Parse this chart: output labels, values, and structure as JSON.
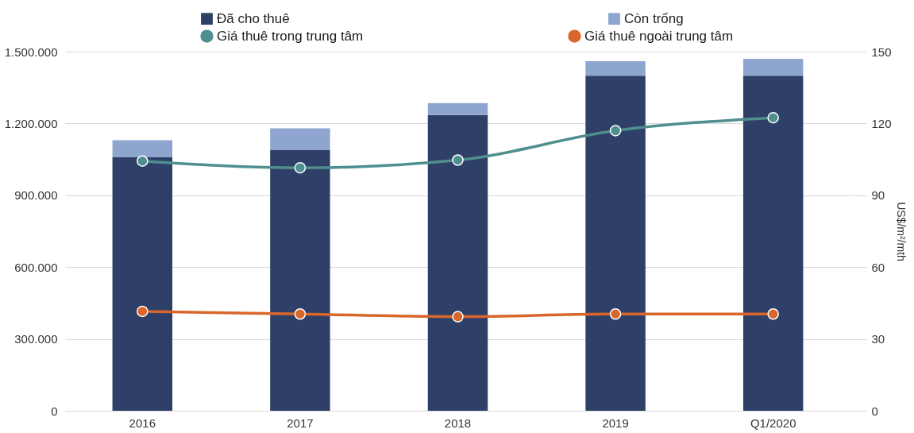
{
  "chart_data": {
    "type": "bar",
    "stacked": true,
    "categories": [
      "2016",
      "2017",
      "2018",
      "2019",
      "Q1/2020"
    ],
    "series": [
      {
        "name": "Đã cho thuê",
        "color": "#2e4068",
        "values": [
          1060000,
          1090000,
          1235000,
          1400000,
          1400000
        ]
      },
      {
        "name": "Còn trống",
        "color": "#8ea6cf",
        "values": [
          70000,
          90000,
          50000,
          60000,
          70000
        ]
      },
      {
        "name": "Giá thuê trong trung tâm",
        "type": "line",
        "axis": "y2",
        "color": "#4f8f8f",
        "values": [
          104.3,
          101.5,
          104.7,
          117,
          122.4
        ]
      },
      {
        "name": "Giá thuê ngoài trung tâm",
        "type": "line",
        "axis": "y2",
        "color": "#d9662a",
        "values": [
          41.5,
          40.4,
          39.3,
          40.4,
          40.4
        ]
      }
    ],
    "ylim": [
      0,
      1500000
    ],
    "yticks": [
      {
        "value": 0,
        "label": "0"
      },
      {
        "value": 300000,
        "label": "300.000"
      },
      {
        "value": 600000,
        "label": "600.000"
      },
      {
        "value": 900000,
        "label": "900.000"
      },
      {
        "value": 1200000,
        "label": "1.200.000"
      },
      {
        "value": 1500000,
        "label": "1.500.000"
      }
    ],
    "y2lim": [
      0,
      150
    ],
    "y2ticks": [
      0,
      30,
      60,
      90,
      120,
      150
    ],
    "y2label": "US$/m²/mth",
    "grid": "y",
    "legend": "top",
    "marker": "circle",
    "line_style": "solid"
  }
}
